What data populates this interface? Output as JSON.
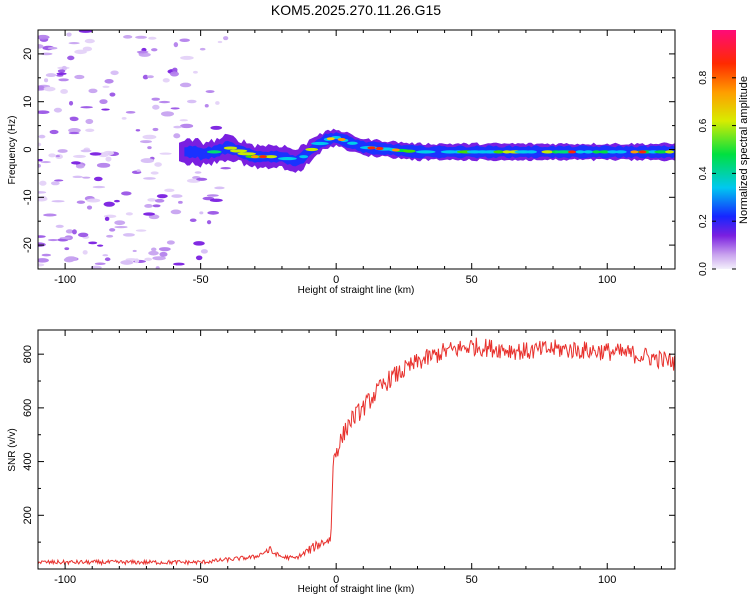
{
  "title": "KOM5.2025.270.11.26.G15",
  "chart_data": [
    {
      "type": "heatmap",
      "name": "spectrogram",
      "xlabel": "Height of straight line (km)",
      "ylabel": "Frequency (Hz)",
      "xlim": [
        -110,
        125
      ],
      "ylim": [
        -25,
        25
      ],
      "xticks": [
        -100,
        -50,
        0,
        50,
        100
      ],
      "yticks": [
        -20,
        -10,
        0,
        10,
        20
      ],
      "colorbar": {
        "label": "Normalized spectral amplitude",
        "range": [
          0,
          1
        ],
        "ticks": [
          "0.0",
          "0.2",
          "0.4",
          "0.6",
          "0.8"
        ],
        "tick_values": [
          0,
          0.2,
          0.4,
          0.6,
          0.8
        ]
      },
      "signal_track": {
        "x": [
          -50,
          -45,
          -40,
          -35,
          -30,
          -25,
          -20,
          -15,
          -12,
          -8,
          -4,
          0,
          5,
          10,
          20,
          30,
          50,
          75,
          100,
          125
        ],
        "freq": [
          -1.0,
          -0.5,
          0.5,
          -0.5,
          -1.5,
          -1.5,
          -1.5,
          -2.5,
          -1.5,
          0.5,
          2.0,
          2.5,
          1.5,
          0.5,
          0.0,
          -0.5,
          -0.5,
          -0.5,
          -0.5,
          -0.5
        ]
      },
      "noise_region": "x < -45 km"
    },
    {
      "type": "line",
      "name": "snr",
      "xlabel": "Height of straight line (km)",
      "ylabel": "SNR (v/v)",
      "xlim": [
        -110,
        125
      ],
      "ylim": [
        0,
        890
      ],
      "xticks": [
        -100,
        -50,
        0,
        50,
        100
      ],
      "yticks": [
        200,
        400,
        600,
        800
      ],
      "color": "#e8312d",
      "series": {
        "x": [
          -110,
          -90,
          -70,
          -50,
          -40,
          -30,
          -25,
          -20,
          -15,
          -10,
          -5,
          -2,
          -1,
          0,
          5,
          10,
          15,
          20,
          25,
          30,
          40,
          50,
          60,
          70,
          80,
          90,
          100,
          110,
          125
        ],
        "y": [
          25,
          25,
          25,
          25,
          35,
          45,
          70,
          45,
          40,
          70,
          100,
          110,
          420,
          440,
          550,
          600,
          660,
          710,
          740,
          770,
          810,
          830,
          820,
          810,
          820,
          815,
          810,
          800,
          770
        ]
      },
      "noise_amplitude": 35
    }
  ]
}
